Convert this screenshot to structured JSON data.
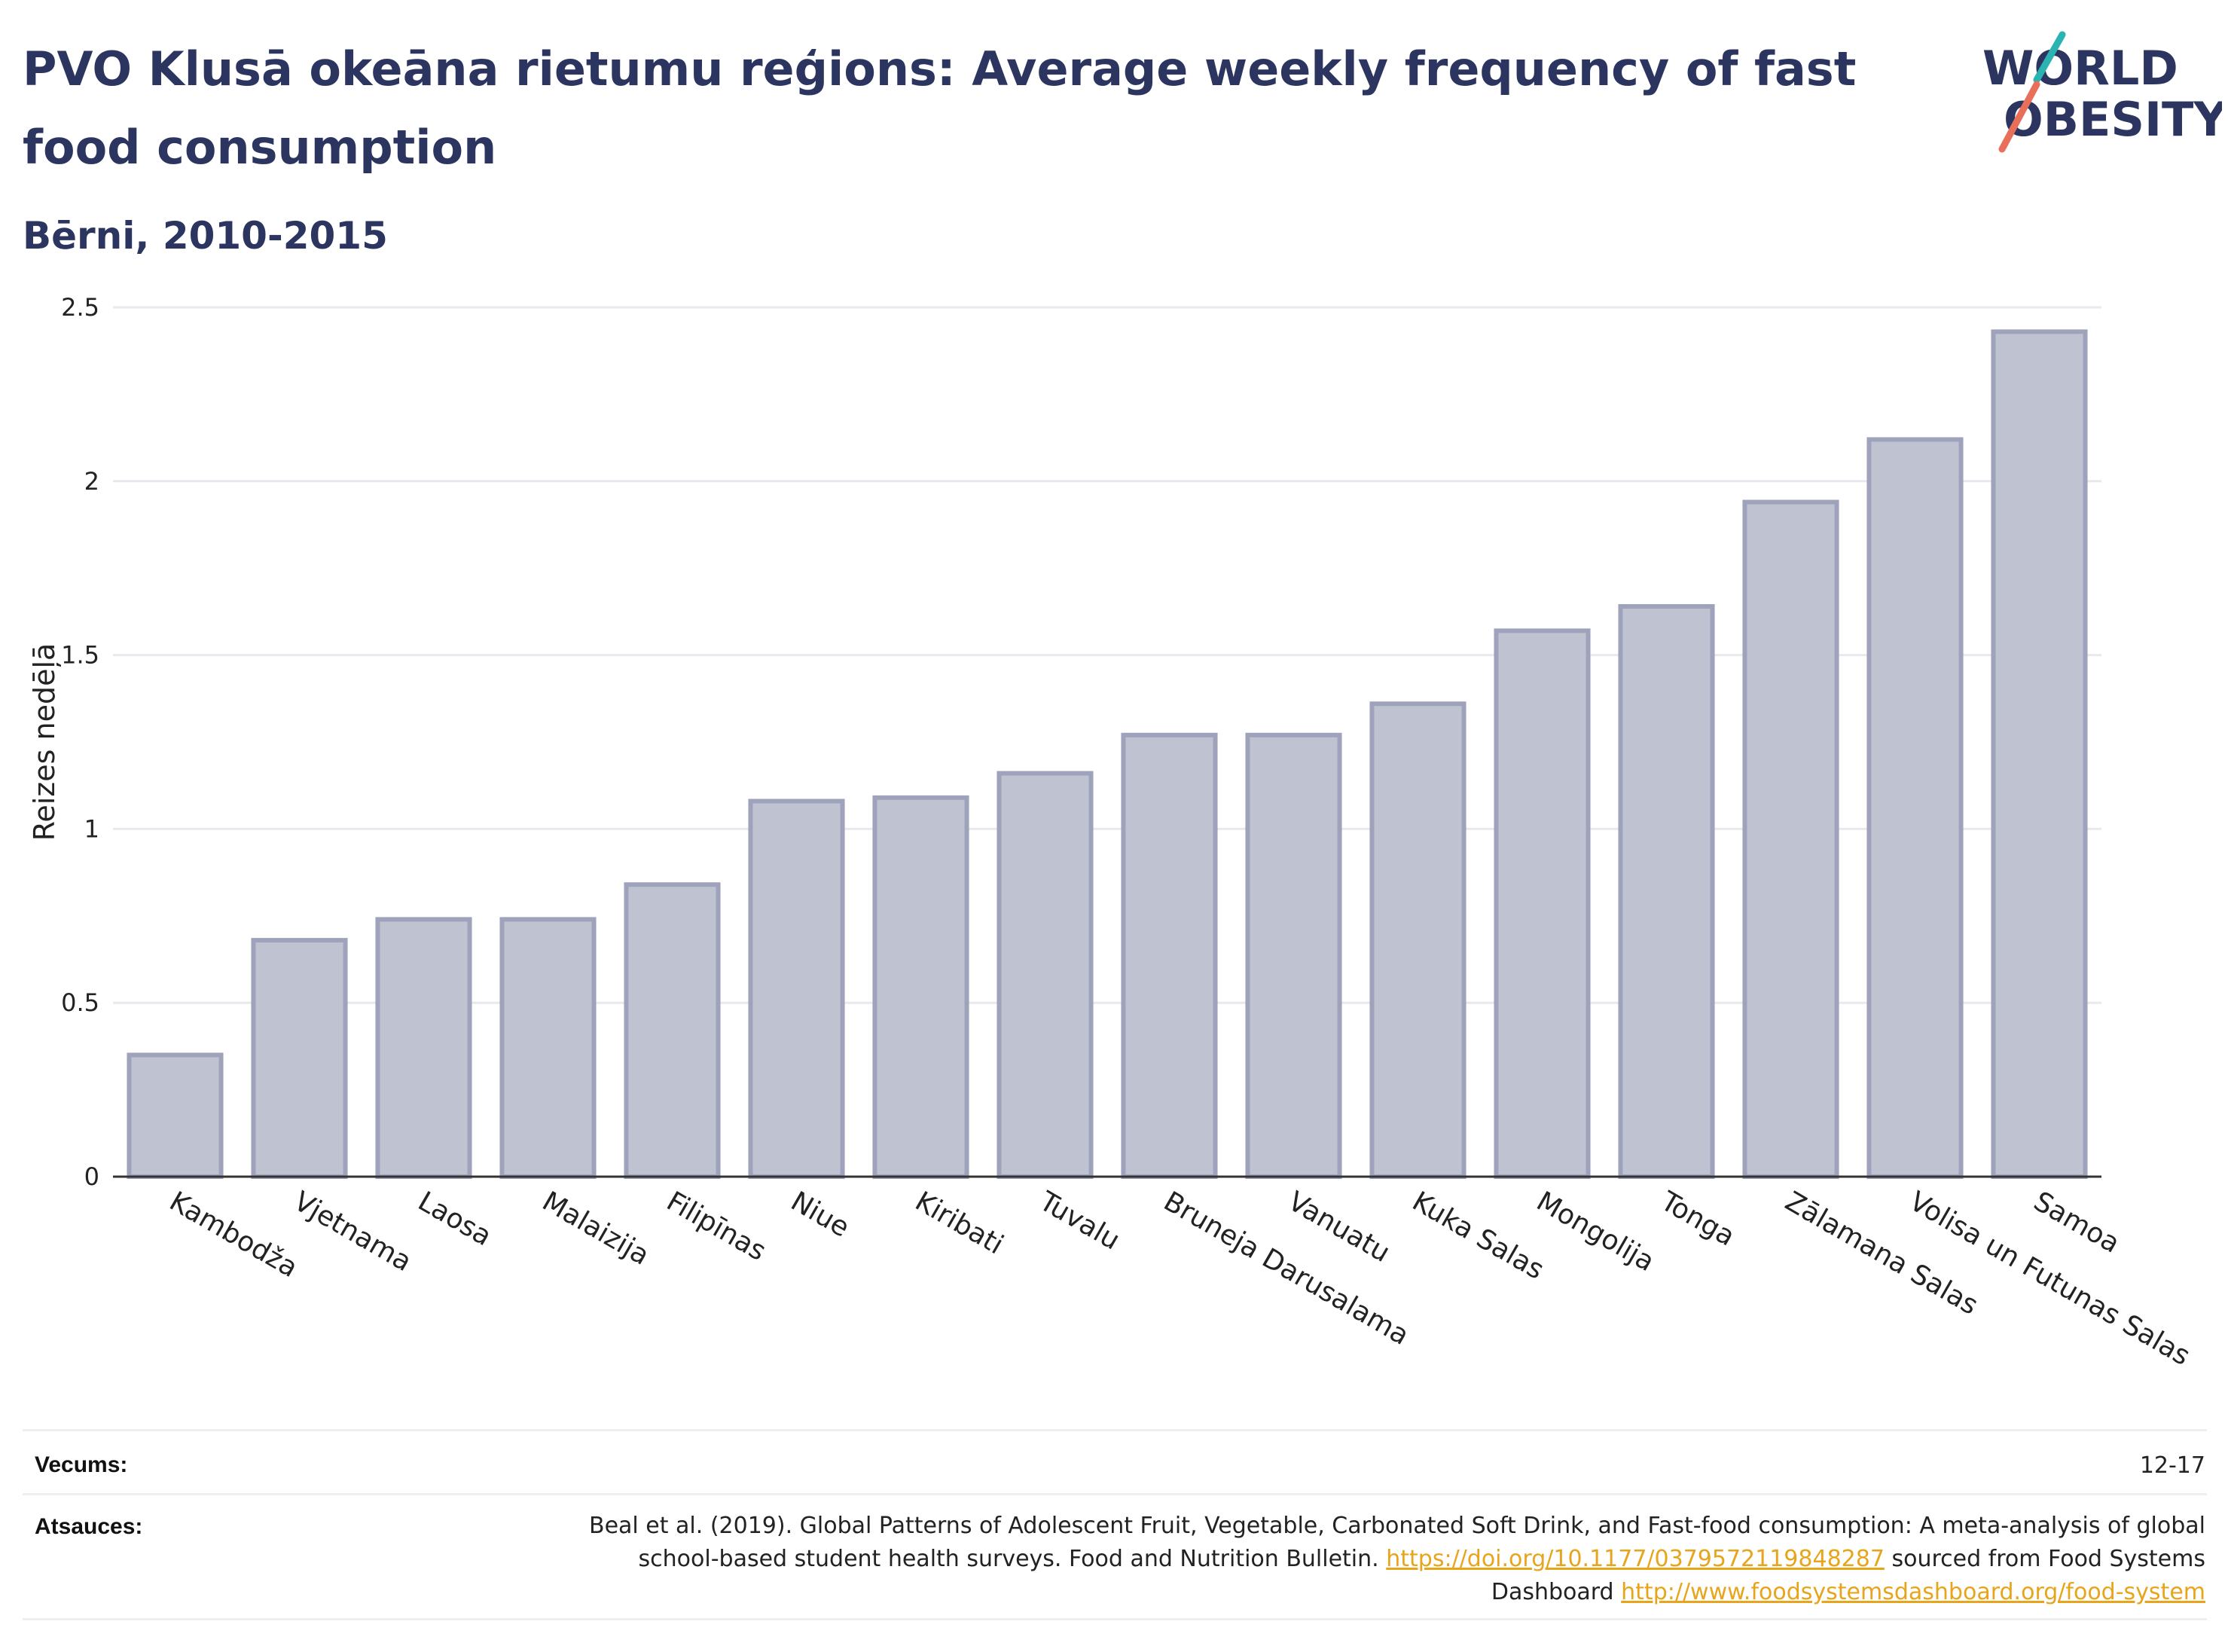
{
  "header": {
    "title": "PVO Klusā okeāna rietumu reģions: Average weekly frequency of fast food consumption",
    "subtitle": "Bērni, 2010-2015"
  },
  "logo": {
    "line1": "WORLD",
    "line2": "OBESITY",
    "accent_teal": "#2bb3b1",
    "accent_coral": "#e8705a"
  },
  "colors": {
    "text": "#2b3560",
    "bar_fill": "#bfc2d0",
    "bar_stroke": "#9ea3bb",
    "grid": "#e8e8ee",
    "axis": "#333333",
    "link": "#e8a51c"
  },
  "chart_data": {
    "type": "bar",
    "title": "PVO Klusā okeāna rietumu reģions: Average weekly frequency of fast food consumption",
    "xlabel": "",
    "ylabel": "Reizes nedēļā",
    "ylim": [
      0,
      2.5
    ],
    "yticks": [
      0,
      0.5,
      1,
      1.5,
      2,
      2.5
    ],
    "ytick_labels": [
      "0",
      "0.5",
      "1",
      "1.5",
      "2",
      "2.5"
    ],
    "grid": true,
    "categories": [
      "Kambodža",
      "Vjetnama",
      "Laosa",
      "Malaizija",
      "Filipīnas",
      "Niue",
      "Kiribati",
      "Tuvalu",
      "Bruneja Darusalama",
      "Vanuatu",
      "Kuka Salas",
      "Mongolija",
      "Tonga",
      "Zālamana Salas",
      "Volisa un Futunas Salas",
      "Samoa"
    ],
    "values": [
      0.35,
      0.68,
      0.74,
      0.74,
      0.84,
      1.08,
      1.09,
      1.16,
      1.27,
      1.27,
      1.36,
      1.57,
      1.64,
      1.94,
      2.12,
      2.43
    ]
  },
  "meta": {
    "age_label": "Vecums:",
    "age_value": "12-17",
    "refs_label": "Atsauces:",
    "refs_text_1": "Beal et al. (2019). Global Patterns of Adolescent Fruit, Vegetable, Carbonated Soft Drink, and Fast-food consumption: A meta-analysis of global school-based student health surveys. Food and Nutrition Bulletin.",
    "refs_link_1": "https://doi.org/10.1177/0379572119848287",
    "refs_text_2": "sourced from Food Systems Dashboard",
    "refs_link_2": "http://www.foodsystemsdashboard.org/food-system"
  }
}
